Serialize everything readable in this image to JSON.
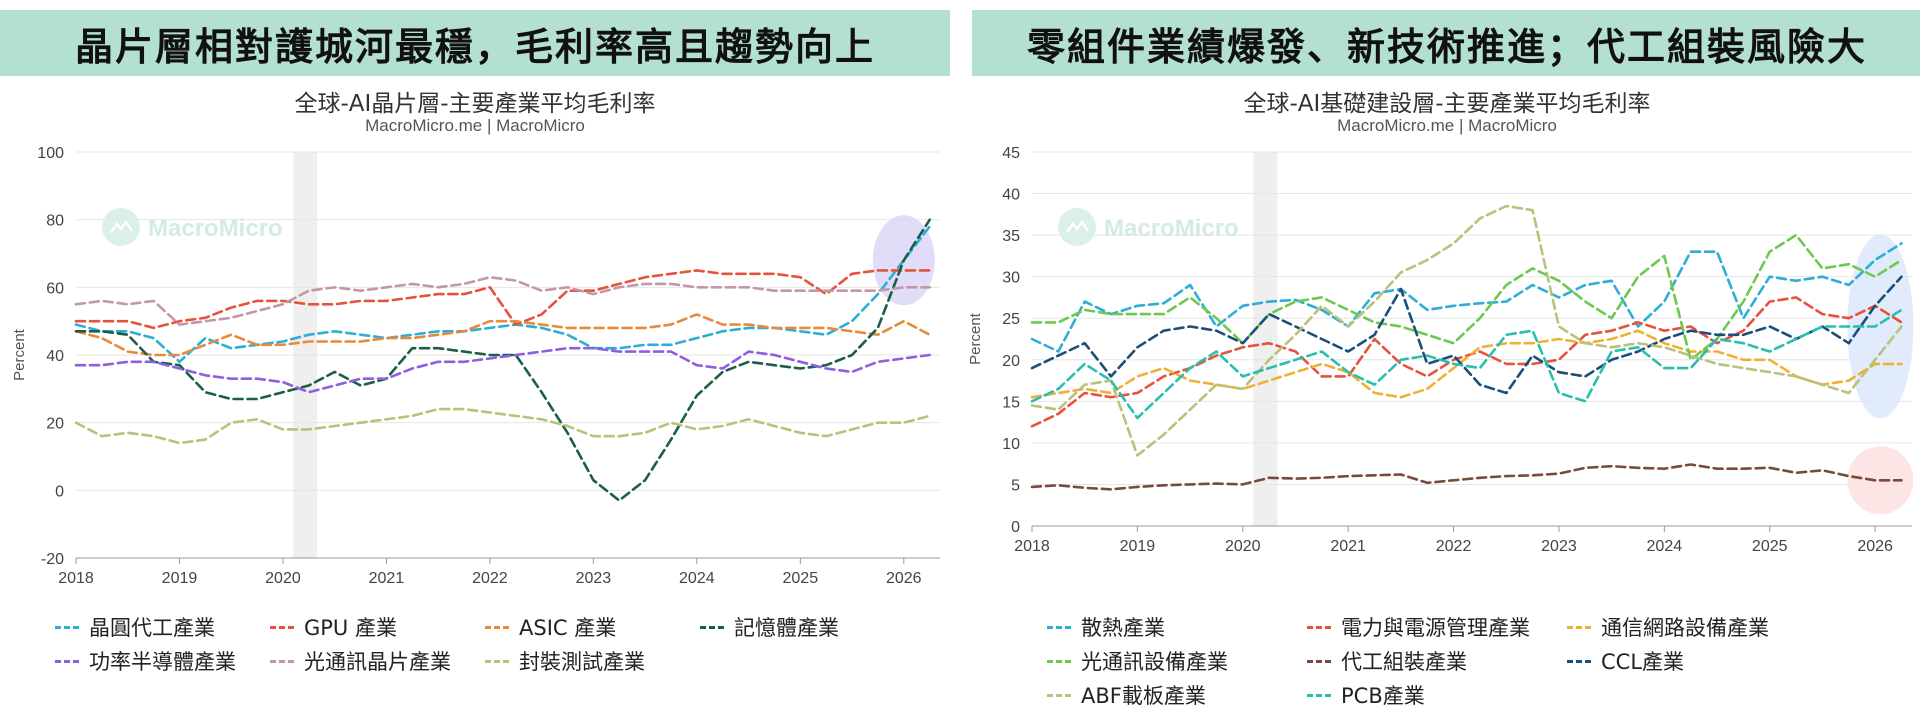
{
  "watermark": "MacroMicro",
  "chart_data": [
    {
      "type": "line",
      "banner": "晶片層相對護城河最穩，毛利率高且趨勢向上",
      "title": "全球-AI晶片層-主要產業平均毛利率",
      "subtitle": "MacroMicro.me | MacroMicro",
      "ylabel": "Percent",
      "xlabel": "",
      "ylim": [
        -20,
        100
      ],
      "yticks": [
        -20,
        0,
        20,
        40,
        60,
        80,
        100
      ],
      "xlim": [
        2018,
        2026.35
      ],
      "xticks": [
        "2018",
        "2019",
        "2020",
        "2021",
        "2022",
        "2023",
        "2024",
        "2025",
        "2026"
      ],
      "shaded_range": [
        2020.1,
        2020.33
      ],
      "highlight": {
        "x": 2026.0,
        "y": 68,
        "color": "#dcd6f7"
      },
      "grid": true,
      "legend_position": "bottom",
      "x": [
        2018.0,
        2018.25,
        2018.5,
        2018.75,
        2019.0,
        2019.25,
        2019.5,
        2019.75,
        2020.0,
        2020.25,
        2020.5,
        2020.75,
        2021.0,
        2021.25,
        2021.5,
        2021.75,
        2022.0,
        2022.25,
        2022.5,
        2022.75,
        2023.0,
        2023.25,
        2023.5,
        2023.75,
        2024.0,
        2024.25,
        2024.5,
        2024.75,
        2025.0,
        2025.25,
        2025.5,
        2025.75,
        2026.0,
        2026.25
      ],
      "series": [
        {
          "name": "晶圓代工產業",
          "color": "#2eaed6",
          "values": [
            49,
            47,
            47,
            45,
            38,
            45,
            42,
            43,
            44,
            46,
            47,
            46,
            45,
            46,
            47,
            47,
            48,
            49,
            48,
            46,
            42,
            42,
            43,
            43,
            45,
            47,
            48,
            48,
            47,
            46,
            50,
            58,
            68,
            78
          ]
        },
        {
          "name": "GPU 產業",
          "color": "#e5533a",
          "values": [
            50,
            50,
            50,
            48,
            50,
            51,
            54,
            56,
            56,
            55,
            55,
            56,
            56,
            57,
            58,
            58,
            60,
            49,
            52,
            59,
            59,
            61,
            63,
            64,
            65,
            64,
            64,
            64,
            63,
            58,
            64,
            65,
            65,
            65
          ]
        },
        {
          "name": "ASIC 產業",
          "color": "#e88a3c",
          "values": [
            47,
            45,
            41,
            40,
            40,
            43,
            46,
            43,
            43,
            44,
            44,
            44,
            45,
            45,
            46,
            47,
            50,
            50,
            49,
            48,
            48,
            48,
            48,
            49,
            52,
            49,
            49,
            48,
            48,
            48,
            47,
            46,
            50,
            46
          ]
        },
        {
          "name": "記憶體產業",
          "color": "#1c5e48",
          "values": [
            47,
            47,
            46,
            38,
            37,
            29,
            27,
            27,
            29,
            31,
            35,
            31,
            33,
            42,
            42,
            41,
            40,
            40,
            29,
            17,
            3,
            -3,
            3,
            15,
            28,
            35,
            38,
            37,
            36,
            37,
            40,
            48,
            68,
            80
          ]
        },
        {
          "name": "功率半導體產業",
          "color": "#8e5fe0",
          "values": [
            37,
            37,
            38,
            38,
            36,
            34,
            33,
            33,
            32,
            29,
            31,
            33,
            33,
            36,
            38,
            38,
            39,
            40,
            41,
            42,
            42,
            41,
            41,
            41,
            37,
            36,
            41,
            40,
            38,
            36,
            35,
            38,
            39,
            40
          ]
        },
        {
          "name": "光通訊晶片產業",
          "color": "#c597a6",
          "values": [
            55,
            56,
            55,
            56,
            49,
            50,
            51,
            53,
            55,
            59,
            60,
            59,
            60,
            61,
            60,
            61,
            63,
            62,
            59,
            60,
            58,
            60,
            61,
            61,
            60,
            60,
            60,
            59,
            59,
            59,
            59,
            59,
            60,
            60
          ]
        },
        {
          "name": "封裝測試產業",
          "color": "#b8c27a",
          "values": [
            20,
            16,
            17,
            16,
            14,
            15,
            20,
            21,
            18,
            18,
            19,
            20,
            21,
            22,
            24,
            24,
            23,
            22,
            21,
            19,
            16,
            16,
            17,
            20,
            18,
            19,
            21,
            19,
            17,
            16,
            18,
            20,
            20,
            22
          ]
        }
      ]
    },
    {
      "type": "line",
      "banner": "零組件業績爆發、新技術推進；代工組裝風險大",
      "title": "全球-AI基礎建設層-主要產業平均毛利率",
      "subtitle": "MacroMicro.me | MacroMicro",
      "ylabel": "Percent",
      "xlabel": "",
      "ylim": [
        0,
        45
      ],
      "yticks": [
        0,
        5,
        10,
        15,
        20,
        25,
        30,
        35,
        40,
        45
      ],
      "xlim": [
        2018,
        2026.35
      ],
      "xticks": [
        "2018",
        "2019",
        "2020",
        "2021",
        "2022",
        "2023",
        "2024",
        "2025",
        "2026"
      ],
      "shaded_range": [
        2020.1,
        2020.33
      ],
      "highlight": {
        "x": 2026.05,
        "y": 24,
        "color": "#dce7fb"
      },
      "highlight2": {
        "x": 2026.05,
        "y": 5.5,
        "color": "#fbe1df"
      },
      "grid": true,
      "legend_position": "bottom",
      "x": [
        2018.0,
        2018.25,
        2018.5,
        2018.75,
        2019.0,
        2019.25,
        2019.5,
        2019.75,
        2020.0,
        2020.25,
        2020.5,
        2020.75,
        2021.0,
        2021.25,
        2021.5,
        2021.75,
        2022.0,
        2022.25,
        2022.5,
        2022.75,
        2023.0,
        2023.25,
        2023.5,
        2023.75,
        2024.0,
        2024.25,
        2024.5,
        2024.75,
        2025.0,
        2025.25,
        2025.5,
        2025.75,
        2026.0,
        2026.25
      ],
      "series": [
        {
          "name": "散熱產業",
          "color": "#2eaed6",
          "values": [
            22.5,
            21.0,
            27.0,
            25.5,
            26.5,
            26.8,
            29.0,
            24.0,
            26.5,
            27.0,
            27.2,
            26.0,
            24.0,
            28.0,
            28.5,
            26.0,
            26.5,
            26.8,
            27.0,
            29.0,
            27.5,
            29.0,
            29.5,
            24.0,
            27.0,
            33.0,
            33.0,
            25.0,
            30.0,
            29.5,
            30.0,
            29.0,
            32.0,
            34.0
          ]
        },
        {
          "name": "電力與電源管理產業",
          "color": "#e5533a",
          "values": [
            12.0,
            13.5,
            16.0,
            15.5,
            16.0,
            18.0,
            19.0,
            20.5,
            21.5,
            22.0,
            21.0,
            18.0,
            18.0,
            22.5,
            19.5,
            18.0,
            20.0,
            21.0,
            19.5,
            19.5,
            20.0,
            23.0,
            23.5,
            24.5,
            23.5,
            24.0,
            22.0,
            23.5,
            27.0,
            27.5,
            25.5,
            25.0,
            26.5,
            24.5
          ]
        },
        {
          "name": "通信網路設備產業",
          "color": "#f0b034",
          "values": [
            15.5,
            16.0,
            16.5,
            16.0,
            18.0,
            19.0,
            17.5,
            17.0,
            16.5,
            17.5,
            18.5,
            19.5,
            18.5,
            16.0,
            15.5,
            16.5,
            19.0,
            21.5,
            22.0,
            22.0,
            22.5,
            22.0,
            22.5,
            23.5,
            22.0,
            21.0,
            21.0,
            20.0,
            20.0,
            18.0,
            17.0,
            17.5,
            19.5,
            19.5
          ]
        },
        {
          "name": "光通訊設備產業",
          "color": "#6dc94e",
          "values": [
            24.5,
            24.5,
            26.0,
            25.5,
            25.5,
            25.5,
            27.5,
            25.0,
            22.0,
            25.5,
            27.0,
            27.5,
            26.0,
            24.5,
            24.0,
            23.0,
            22.0,
            25.0,
            29.0,
            31.0,
            29.5,
            27.0,
            25.0,
            30.0,
            32.5,
            20.0,
            22.5,
            27.0,
            33.0,
            35.0,
            31.0,
            31.5,
            30.0,
            32.0
          ]
        },
        {
          "name": "代工組裝產業",
          "color": "#7b4a3e",
          "values": [
            4.7,
            4.9,
            4.6,
            4.4,
            4.7,
            4.9,
            5.0,
            5.1,
            5.0,
            5.8,
            5.7,
            5.8,
            6.0,
            6.1,
            6.2,
            5.2,
            5.5,
            5.8,
            6.0,
            6.1,
            6.3,
            7.0,
            7.2,
            7.0,
            6.9,
            7.4,
            6.9,
            6.9,
            7.0,
            6.4,
            6.7,
            6.0,
            5.5,
            5.5
          ]
        },
        {
          "name": "CCL產業",
          "color": "#1c4e7a",
          "values": [
            19.0,
            20.5,
            22.0,
            18.0,
            21.5,
            23.5,
            24.0,
            23.5,
            22.0,
            25.5,
            24.0,
            22.5,
            21.0,
            23.0,
            28.5,
            19.5,
            20.5,
            17.0,
            16.0,
            20.5,
            18.5,
            18.0,
            20.0,
            21.0,
            22.5,
            23.5,
            23.0,
            23.0,
            24.0,
            22.5,
            24.0,
            22.0,
            26.5,
            30.0
          ]
        },
        {
          "name": "ABF載板產業",
          "color": "#b8c27a",
          "values": [
            14.5,
            14.0,
            17.0,
            17.5,
            8.5,
            11.0,
            14.0,
            17.0,
            16.5,
            20.0,
            23.0,
            26.5,
            24.0,
            27.0,
            30.5,
            32.0,
            34.0,
            37.0,
            38.5,
            38.0,
            24.0,
            22.0,
            21.5,
            22.0,
            21.5,
            20.5,
            19.5,
            19.0,
            18.5,
            18.0,
            17.0,
            16.0,
            20.0,
            24.0
          ]
        },
        {
          "name": "PCB產業",
          "color": "#28bfae",
          "values": [
            15.0,
            16.5,
            19.5,
            17.5,
            13.0,
            16.0,
            19.0,
            21.0,
            18.0,
            19.0,
            20.0,
            21.0,
            18.5,
            17.0,
            20.0,
            20.5,
            19.5,
            19.0,
            23.0,
            23.5,
            16.0,
            15.0,
            21.0,
            21.5,
            19.0,
            19.0,
            22.5,
            22.0,
            21.0,
            22.5,
            24.0,
            24.0,
            24.0,
            26.0
          ]
        }
      ]
    }
  ]
}
